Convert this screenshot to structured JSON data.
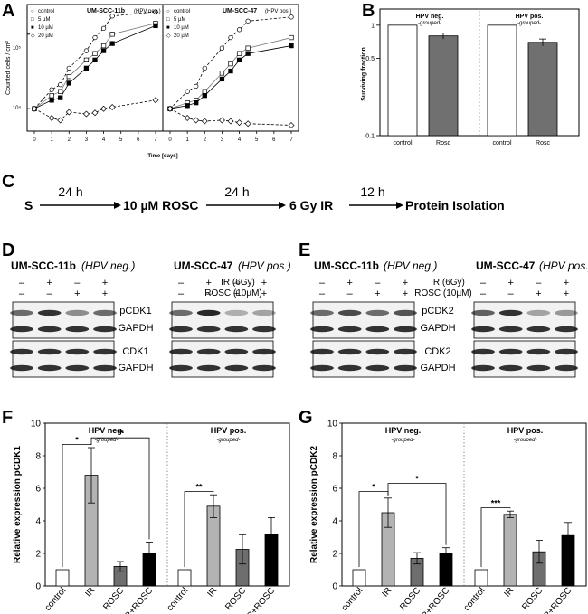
{
  "panel_labels": {
    "a": "A",
    "b": "B",
    "c": "C",
    "d": "D",
    "e": "E",
    "f": "F",
    "g": "G"
  },
  "panel_a": {
    "ylabel": "Counted cells / cm²",
    "xlabel": "Time [days]",
    "y_tick_labels": [
      "10⁴",
      "10⁵"
    ],
    "x_tick_labels": [
      "0",
      "1",
      "2",
      "3",
      "4",
      "5",
      "6",
      "7"
    ],
    "legend": [
      "control",
      "5  µM",
      "10 µM",
      "20 µM"
    ],
    "left_title": "UM-SCC-11b",
    "left_sub": "(HPV neg.)",
    "right_title": "UM-SCC-47",
    "right_sub": "(HPV pos.)"
  },
  "panel_b": {
    "ylabel": "Surviving fraction",
    "y_tick_labels": [
      "0.1",
      "0.5",
      "1"
    ],
    "x_tick_labels": [
      "control",
      "Rosc",
      "control",
      "Rosc"
    ],
    "group_left": "HPV neg.",
    "group_left_sub": "-grouped-",
    "group_right": "HPV pos.",
    "group_right_sub": "-grouped-"
  },
  "panel_c": {
    "steps": [
      "S",
      "10 µM ROSC",
      "6 Gy IR",
      "Protein Isolation"
    ],
    "intervals": [
      "24 h",
      "24 h",
      "12  h"
    ]
  },
  "panel_d": {
    "cell_left": "UM-SCC-11b",
    "cell_left_sub": "(HPV neg.)",
    "cell_right": "UM-SCC-47",
    "cell_right_sub": "(HPV pos.)",
    "row_ir_label": "IR (6Gy)",
    "row_rosc_label": "ROSC (10µM)",
    "ir_signs": [
      "–",
      "+",
      "–",
      "+"
    ],
    "rosc_signs": [
      "–",
      "–",
      "+",
      "+"
    ],
    "bands_top": [
      "pCDK1",
      "GAPDH"
    ],
    "bands_bottom": [
      "CDK1",
      "GAPDH"
    ]
  },
  "panel_e": {
    "cell_left": "UM-SCC-11b",
    "cell_left_sub": "(HPV neg.)",
    "cell_right": "UM-SCC-47",
    "cell_right_sub": "(HPV pos.)",
    "row_ir_label": "IR (6Gy)",
    "row_rosc_label": "ROSC (10µM)",
    "ir_signs": [
      "–",
      "+",
      "–",
      "+"
    ],
    "rosc_signs": [
      "–",
      "–",
      "+",
      "+"
    ],
    "bands_top": [
      "pCDK2",
      "GAPDH"
    ],
    "bands_bottom": [
      "CDK2",
      "GAPDH"
    ]
  },
  "chart_data": [
    {
      "type": "line",
      "title": "UM-SCC-11b (HPV neg.)",
      "xlabel": "Time [days]",
      "ylabel": "Counted cells / cm²",
      "yscale": "log",
      "ylim": [
        5000,
        250000
      ],
      "x": [
        0,
        1,
        1.5,
        2,
        3,
        3.5,
        4,
        4.5,
        7
      ],
      "series": [
        {
          "name": "control",
          "values": [
            10000,
            18000,
            21000,
            35000,
            60000,
            90000,
            120000,
            175000,
            200000
          ]
        },
        {
          "name": "5  µM",
          "values": [
            10000,
            15000,
            17000,
            27000,
            45000,
            55000,
            70000,
            100000,
            140000
          ]
        },
        {
          "name": "10 µM",
          "values": [
            10000,
            13000,
            14000,
            22000,
            35000,
            45000,
            60000,
            75000,
            130000
          ]
        },
        {
          "name": "20 µM",
          "values": [
            10000,
            7500,
            7000,
            9000,
            8500,
            8800,
            10000,
            10500,
            13000
          ]
        }
      ]
    },
    {
      "type": "line",
      "title": "UM-SCC-47 (HPV pos.)",
      "xlabel": "Time [days]",
      "ylabel": "Counted cells / cm²",
      "yscale": "log",
      "ylim": [
        5000,
        250000
      ],
      "x": [
        0,
        1,
        1.5,
        2,
        3,
        3.5,
        4,
        4.5,
        7
      ],
      "series": [
        {
          "name": "control",
          "values": [
            10000,
            17000,
            20000,
            35000,
            65000,
            90000,
            115000,
            150000,
            170000
          ]
        },
        {
          "name": "5  µM",
          "values": [
            10000,
            12000,
            13000,
            17000,
            30000,
            40000,
            55000,
            65000,
            90000
          ]
        },
        {
          "name": "10 µM",
          "values": [
            10000,
            11000,
            12000,
            15000,
            25000,
            32000,
            45000,
            55000,
            70000
          ]
        },
        {
          "name": "20 µM",
          "values": [
            10000,
            7500,
            7000,
            6800,
            7000,
            6800,
            6500,
            6300,
            6000
          ]
        }
      ]
    },
    {
      "type": "bar",
      "title": "Surviving fraction",
      "yscale": "log",
      "ylim": [
        0.1,
        1.4
      ],
      "categories": [
        "control",
        "Rosc",
        "control",
        "Rosc"
      ],
      "groups": [
        "HPV neg.",
        "HPV neg.",
        "HPV pos.",
        "HPV pos."
      ],
      "values": [
        1.0,
        0.8,
        1.0,
        0.7
      ],
      "errors": [
        0,
        0.05,
        0,
        0.05
      ]
    },
    {
      "type": "bar",
      "title": "pCDK1",
      "ylabel": "Relative expression pCDK1",
      "ylim": [
        0,
        10
      ],
      "y_ticks": [
        0,
        2,
        4,
        6,
        8,
        10
      ],
      "categories": [
        "control",
        "IR",
        "ROSC",
        "IR+ROSC",
        "control",
        "IR",
        "ROSC",
        "IR+ROSC"
      ],
      "group_titles": [
        "HPV neg.",
        "HPV pos."
      ],
      "group_subtitle": "-grouped-",
      "values": [
        1.0,
        6.8,
        1.2,
        2.0,
        1.0,
        4.9,
        2.25,
        3.2
      ],
      "errors": [
        0,
        1.7,
        0.3,
        0.7,
        0,
        0.7,
        0.9,
        1.0
      ],
      "significance": [
        {
          "from": 0,
          "to": 1,
          "label": "*",
          "level": 8.7
        },
        {
          "from": 1,
          "to": 3,
          "label": "**",
          "level": 9.1
        },
        {
          "from": 4,
          "to": 5,
          "label": "**",
          "level": 5.8
        }
      ]
    },
    {
      "type": "bar",
      "title": "pCDK2",
      "ylabel": "Relative expression pCDK2",
      "ylim": [
        0,
        10
      ],
      "y_ticks": [
        0,
        2,
        4,
        6,
        8,
        10
      ],
      "categories": [
        "control",
        "IR",
        "ROSC",
        "IR+ROSC",
        "control",
        "IR",
        "ROSC",
        "IR+ROSC"
      ],
      "group_titles": [
        "HPV neg.",
        "HPV pos."
      ],
      "group_subtitle": "-grouped-",
      "values": [
        1.0,
        4.5,
        1.7,
        2.0,
        1.0,
        4.4,
        2.1,
        3.1
      ],
      "errors": [
        0,
        0.9,
        0.35,
        0.35,
        0,
        0.2,
        0.7,
        0.8
      ],
      "significance": [
        {
          "from": 0,
          "to": 1,
          "label": "*",
          "level": 5.8
        },
        {
          "from": 1,
          "to": 3,
          "label": "*",
          "level": 6.3
        },
        {
          "from": 4,
          "to": 5,
          "label": "***",
          "level": 4.8
        }
      ]
    }
  ]
}
